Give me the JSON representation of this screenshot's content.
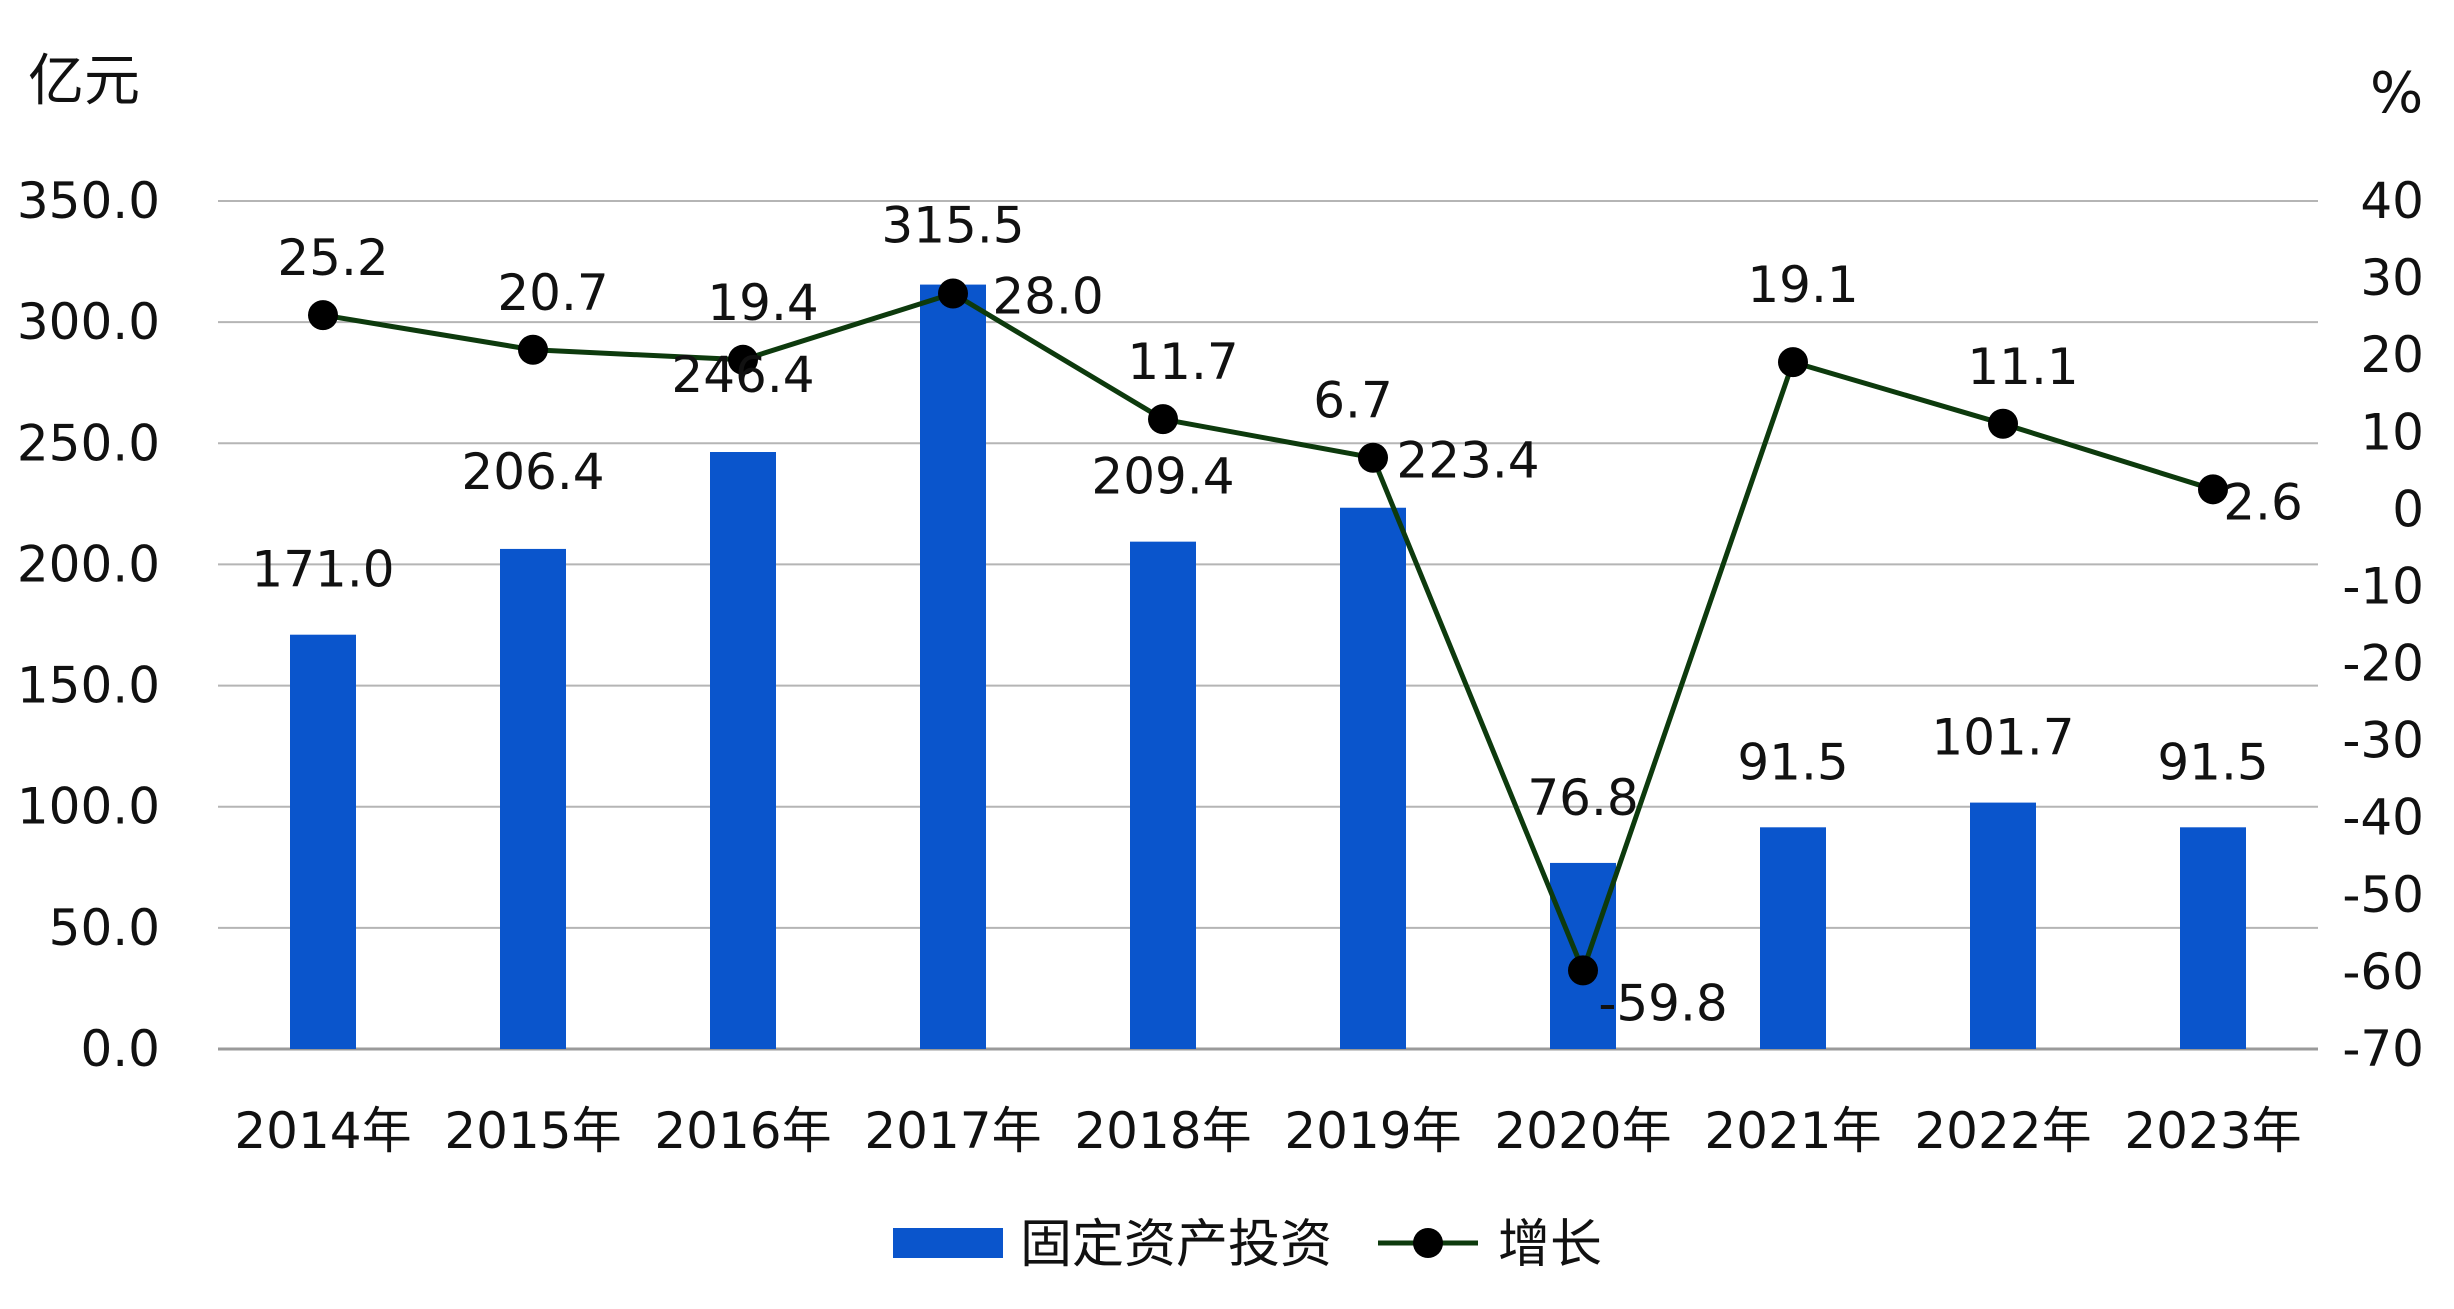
{
  "chart_data": {
    "type": "bar",
    "categories": [
      "2014年",
      "2015年",
      "2016年",
      "2017年",
      "2018年",
      "2019年",
      "2020年",
      "2021年",
      "2022年",
      "2023年"
    ],
    "series": [
      {
        "name": "固定资产投资",
        "type": "bar",
        "axis": "left",
        "color": "#0a55cc",
        "values": [
          171.0,
          206.4,
          246.4,
          315.5,
          209.4,
          223.4,
          76.8,
          91.5,
          101.7,
          91.5
        ],
        "labels": [
          "171.0",
          "206.4",
          "246.4",
          "315.5",
          "209.4",
          "223.4",
          "76.8",
          "91.5",
          "101.7",
          "91.5"
        ]
      },
      {
        "name": "增长",
        "type": "line",
        "axis": "right",
        "color": "#000000",
        "line_color": "#0d3a0d",
        "values": [
          25.2,
          20.7,
          19.4,
          28.0,
          11.7,
          6.7,
          -59.8,
          19.1,
          11.1,
          2.6
        ],
        "labels": [
          "25.2",
          "20.7",
          "19.4",
          "28.0",
          "11.7",
          "6.7",
          "-59.8",
          "19.1",
          "11.1",
          "2.6"
        ]
      }
    ],
    "y_left": {
      "unit": "亿元",
      "ylim": [
        0,
        350
      ],
      "ticks": [
        "0.0",
        "50.0",
        "100.0",
        "150.0",
        "200.0",
        "250.0",
        "300.0",
        "350.0"
      ]
    },
    "y_right": {
      "unit": "%",
      "ylim": [
        -70,
        40
      ],
      "ticks": [
        "-70",
        "-60",
        "-50",
        "-40",
        "-30",
        "-20",
        "-10",
        "0",
        "10",
        "20",
        "30",
        "40"
      ]
    },
    "grid": true,
    "legend_position": "bottom"
  }
}
